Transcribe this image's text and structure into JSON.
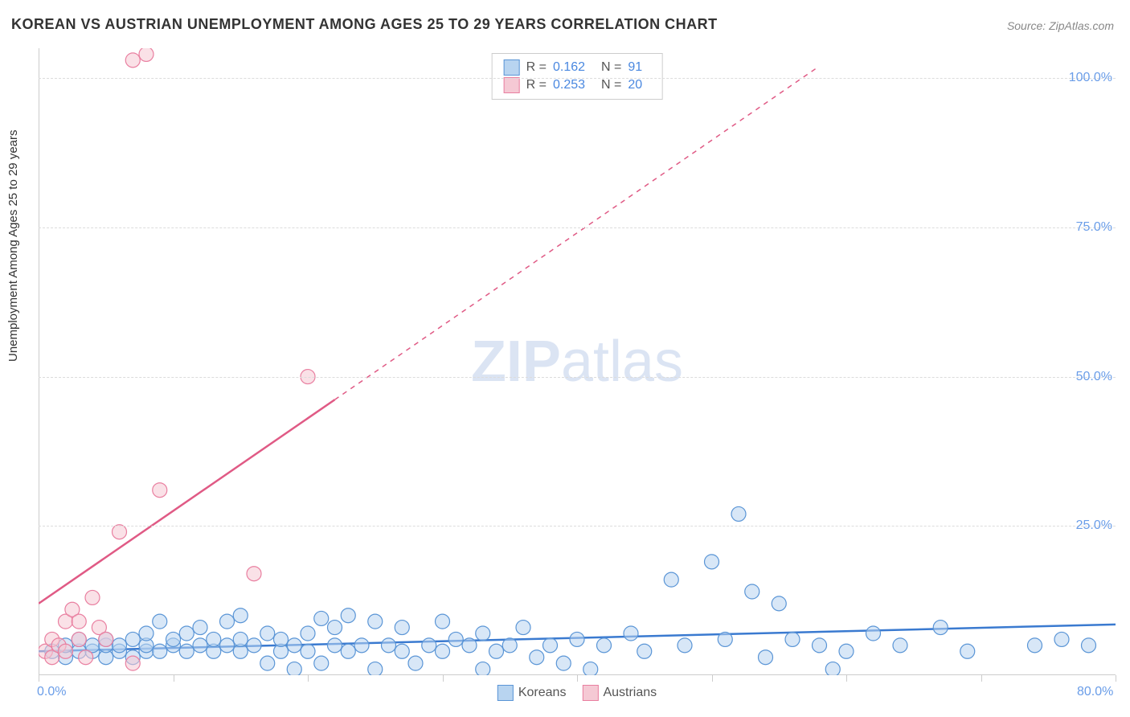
{
  "title": "KOREAN VS AUSTRIAN UNEMPLOYMENT AMONG AGES 25 TO 29 YEARS CORRELATION CHART",
  "source": "Source: ZipAtlas.com",
  "y_axis_label": "Unemployment Among Ages 25 to 29 years",
  "watermark_bold": "ZIP",
  "watermark_rest": "atlas",
  "chart": {
    "type": "scatter",
    "xlim": [
      0,
      80
    ],
    "ylim": [
      0,
      105
    ],
    "x_ticks": [
      0,
      10,
      20,
      30,
      40,
      50,
      60,
      70,
      80
    ],
    "x_tick_labels_shown": {
      "0": "0.0%",
      "80": "80.0%"
    },
    "y_ticks": [
      25,
      50,
      75,
      100
    ],
    "y_tick_labels": [
      "25.0%",
      "50.0%",
      "75.0%",
      "100.0%"
    ],
    "grid_color": "#dcdcdc",
    "axis_color": "#cccccc",
    "background_color": "#ffffff",
    "series": [
      {
        "name": "Koreans",
        "fill": "#b8d4f0",
        "stroke": "#5a95d6",
        "marker_radius": 9,
        "fill_opacity": 0.55,
        "trend": {
          "x1": 0,
          "y1": 4.0,
          "x2": 80,
          "y2": 8.5,
          "stroke": "#3a7ad0",
          "width": 2.5,
          "dash": "none"
        },
        "points": [
          [
            1,
            4
          ],
          [
            2,
            3
          ],
          [
            2,
            5
          ],
          [
            3,
            4
          ],
          [
            3,
            6
          ],
          [
            4,
            4
          ],
          [
            4,
            5
          ],
          [
            5,
            3
          ],
          [
            5,
            5
          ],
          [
            5,
            6
          ],
          [
            6,
            4
          ],
          [
            6,
            5
          ],
          [
            7,
            3
          ],
          [
            7,
            6
          ],
          [
            8,
            4
          ],
          [
            8,
            5
          ],
          [
            8,
            7
          ],
          [
            9,
            4
          ],
          [
            9,
            9
          ],
          [
            10,
            5
          ],
          [
            10,
            6
          ],
          [
            11,
            4
          ],
          [
            11,
            7
          ],
          [
            12,
            5
          ],
          [
            12,
            8
          ],
          [
            13,
            4
          ],
          [
            13,
            6
          ],
          [
            14,
            5
          ],
          [
            14,
            9
          ],
          [
            15,
            4
          ],
          [
            15,
            6
          ],
          [
            15,
            10
          ],
          [
            16,
            5
          ],
          [
            17,
            7
          ],
          [
            17,
            2
          ],
          [
            18,
            4
          ],
          [
            18,
            6
          ],
          [
            19,
            5
          ],
          [
            19,
            1
          ],
          [
            20,
            4
          ],
          [
            20,
            7
          ],
          [
            21,
            2
          ],
          [
            21,
            9.5
          ],
          [
            22,
            5
          ],
          [
            22,
            8
          ],
          [
            23,
            4
          ],
          [
            23,
            10
          ],
          [
            24,
            5
          ],
          [
            25,
            1
          ],
          [
            25,
            9
          ],
          [
            26,
            5
          ],
          [
            27,
            4
          ],
          [
            27,
            8
          ],
          [
            28,
            2
          ],
          [
            29,
            5
          ],
          [
            30,
            4
          ],
          [
            30,
            9
          ],
          [
            31,
            6
          ],
          [
            32,
            5
          ],
          [
            33,
            1
          ],
          [
            33,
            7
          ],
          [
            34,
            4
          ],
          [
            35,
            5
          ],
          [
            36,
            8
          ],
          [
            37,
            3
          ],
          [
            38,
            5
          ],
          [
            39,
            2
          ],
          [
            40,
            6
          ],
          [
            41,
            1
          ],
          [
            42,
            5
          ],
          [
            44,
            7
          ],
          [
            45,
            4
          ],
          [
            47,
            16
          ],
          [
            48,
            5
          ],
          [
            50,
            19
          ],
          [
            51,
            6
          ],
          [
            52,
            27
          ],
          [
            53,
            14
          ],
          [
            54,
            3
          ],
          [
            55,
            12
          ],
          [
            56,
            6
          ],
          [
            58,
            5
          ],
          [
            59,
            1
          ],
          [
            60,
            4
          ],
          [
            62,
            7
          ],
          [
            64,
            5
          ],
          [
            67,
            8
          ],
          [
            69,
            4
          ],
          [
            74,
            5
          ],
          [
            76,
            6
          ],
          [
            78,
            5
          ]
        ]
      },
      {
        "name": "Austrians",
        "fill": "#f5c9d4",
        "stroke": "#e97fa0",
        "marker_radius": 9,
        "fill_opacity": 0.55,
        "trend": {
          "x1": 0,
          "y1": 12,
          "x2": 58,
          "y2": 102,
          "stroke": "#e05a85",
          "width": 2.5,
          "dash": "solid_then_dash",
          "solid_until_x": 22
        },
        "points": [
          [
            0.5,
            4
          ],
          [
            1,
            3
          ],
          [
            1,
            6
          ],
          [
            1.5,
            5
          ],
          [
            2,
            9
          ],
          [
            2,
            4
          ],
          [
            2.5,
            11
          ],
          [
            3,
            6
          ],
          [
            3,
            9
          ],
          [
            3.5,
            3
          ],
          [
            4,
            13
          ],
          [
            4.5,
            8
          ],
          [
            5,
            6
          ],
          [
            6,
            24
          ],
          [
            7,
            2
          ],
          [
            7,
            103
          ],
          [
            8,
            104
          ],
          [
            9,
            31
          ],
          [
            16,
            17
          ],
          [
            20,
            50
          ]
        ]
      }
    ],
    "stat_legend": [
      {
        "swatch_fill": "#b8d4f0",
        "swatch_stroke": "#5a95d6",
        "R": "0.162",
        "N": "91"
      },
      {
        "swatch_fill": "#f5c9d4",
        "swatch_stroke": "#e97fa0",
        "R": "0.253",
        "N": "20"
      }
    ],
    "bottom_legend": [
      {
        "swatch_fill": "#b8d4f0",
        "swatch_stroke": "#5a95d6",
        "label": "Koreans"
      },
      {
        "swatch_fill": "#f5c9d4",
        "swatch_stroke": "#e97fa0",
        "label": "Austrians"
      }
    ],
    "stat_labels": {
      "R": "R =",
      "N": "N ="
    }
  }
}
